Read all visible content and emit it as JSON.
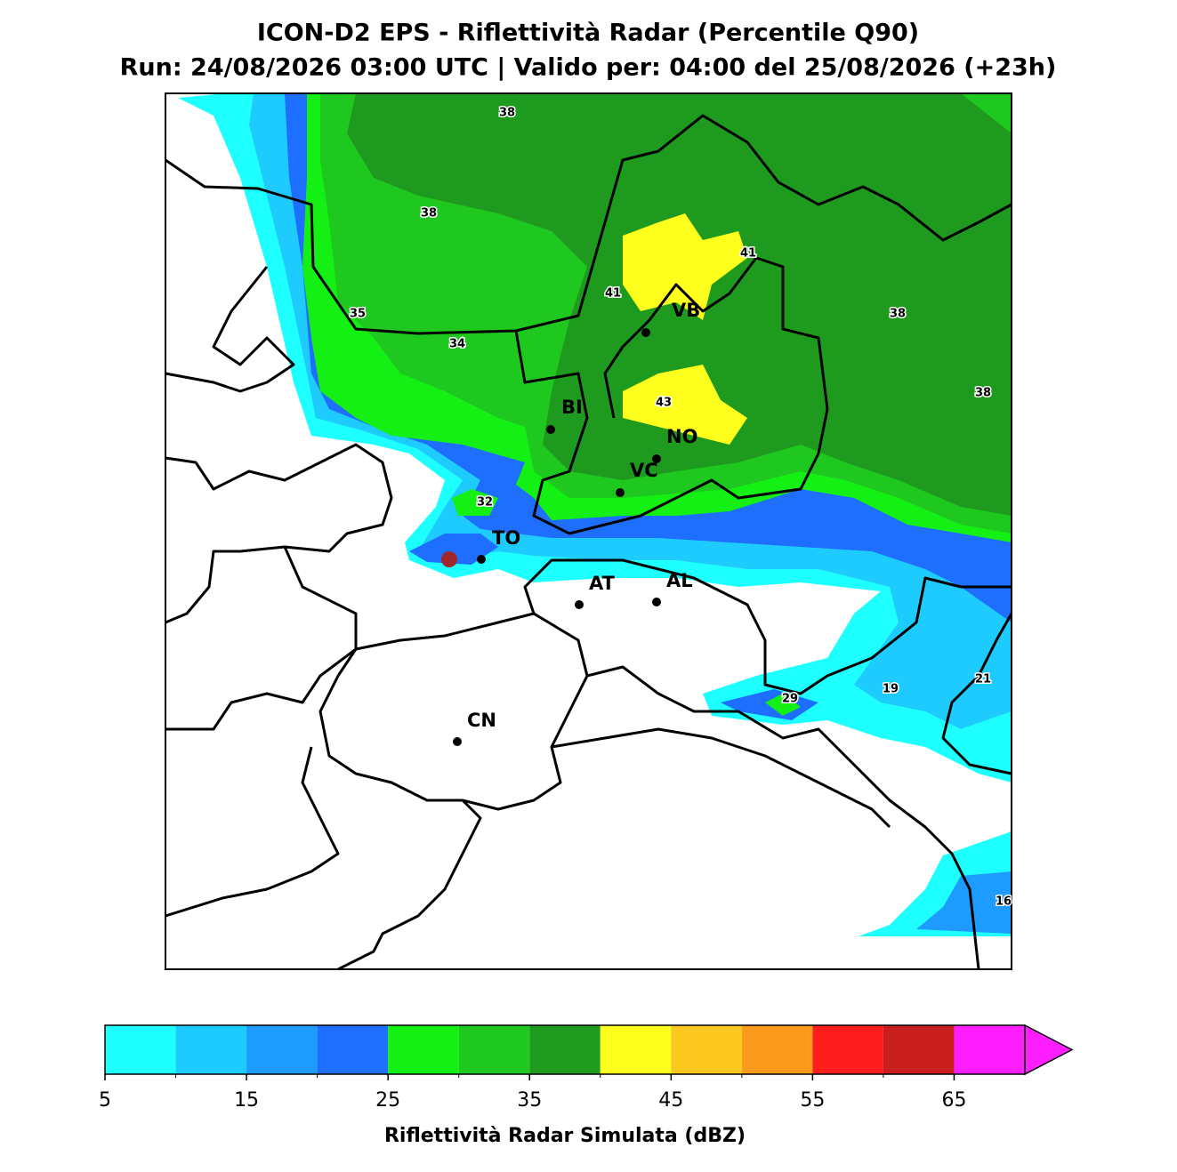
{
  "header": {
    "title": "ICON-D2 EPS - Riflettività Radar (Percentile Q90)",
    "subtitle": "Run: 24/08/2026 03:00 UTC | Valido per: 04:00 del 25/08/2026 (+23h)"
  },
  "cities": [
    {
      "label": "VB"
    },
    {
      "label": "BI"
    },
    {
      "label": "NO"
    },
    {
      "label": "VC"
    },
    {
      "label": "TO"
    },
    {
      "label": "AT"
    },
    {
      "label": "AL"
    },
    {
      "label": "CN"
    }
  ],
  "contour_labels": [
    38,
    38,
    41,
    41,
    35,
    38,
    34,
    43,
    38,
    32,
    29,
    19,
    21,
    16
  ],
  "colorbar": {
    "label": "Riflettività Radar Simulata (dBZ)",
    "clim": [
      5,
      70
    ],
    "extend": "max",
    "levels": [
      5,
      10,
      15,
      20,
      25,
      30,
      35,
      40,
      45,
      50,
      55,
      60,
      65
    ],
    "colors": [
      "#1effff",
      "#1ecbff",
      "#1e9bff",
      "#1e6eff",
      "#14f014",
      "#1ec81e",
      "#1e9b1e",
      "#ffff1e",
      "#fac81e",
      "#fa9b1e",
      "#ff1e1e",
      "#c81e1e",
      "#ff1eff"
    ],
    "ticks": [
      5,
      15,
      25,
      35,
      45,
      55,
      65
    ]
  }
}
